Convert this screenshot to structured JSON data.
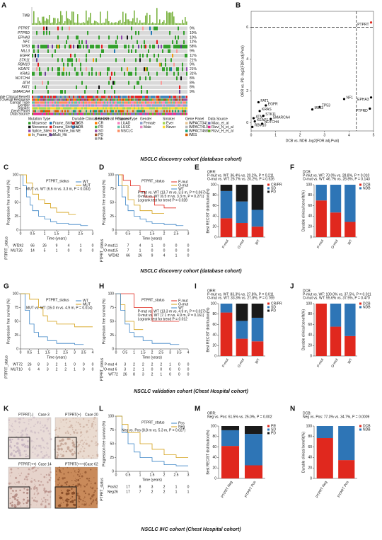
{
  "oncoprint": {
    "label": "A",
    "tmb_label": "TMB",
    "genes": [
      "PTPRT",
      "PTPRD",
      "EPHA3",
      "NF1",
      "TP53",
      "MLL3",
      "EGFR",
      "STK11",
      "RBM10",
      "KEAP1",
      "KRAS",
      "NOTCH4",
      "ATM",
      "FAT1",
      "SMARCA4"
    ],
    "percents": [
      "9%",
      "10%",
      "10%",
      "12%",
      "58%",
      "9%",
      "11%",
      "21%",
      "9%",
      "21%",
      "31%",
      "8%",
      "8%",
      "8%",
      "9%"
    ],
    "clinical_tracks": [
      "Durable Clinical Benefit",
      "Best Overall Response",
      "Cancer Type",
      "Gender",
      "Smoker",
      "Gene Panel",
      "Data Source"
    ],
    "legend": [
      {
        "title": "Mutation Type",
        "items": [
          "Missense",
          "Nonsense",
          "Splice_Site",
          "In_Frame_Del",
          "Frame_Shift_Del",
          "Frame_Shift_Ins",
          "In_Frame_Ins",
          "Multi_Hit"
        ]
      },
      {
        "title": "Durable Clinical Benefit",
        "items": [
          "DCB",
          "NDB",
          "NE"
        ]
      },
      {
        "title": "Best Overall Response",
        "items": [
          "CR",
          "PR",
          "SD",
          "PD",
          "NE"
        ]
      },
      {
        "title": "Cancer Type",
        "items": [
          "LUAD",
          "LUSC",
          "NSCLC"
        ]
      },
      {
        "title": "Gender",
        "items": [
          "Female",
          "Male"
        ]
      },
      {
        "title": "Smoker",
        "items": [
          "Ever",
          "Never"
        ]
      },
      {
        "title": "Gene Panel",
        "items": [
          "IMPACT341",
          "IMPACT410",
          "IMPACT468",
          "WES"
        ]
      },
      {
        "title": "Data Source",
        "items": [
          "Miao_et_al",
          "Rizvi_N_et_al",
          "Rizvi_H_et_al"
        ]
      }
    ]
  },
  "scatter": {
    "label": "B",
    "xlabel": "DCB vs. NDB -log2(FDR adj.Pval)",
    "ylabel": "ORR vs. PD -log2(FDR adj.Pval)",
    "xlim": [
      0,
      5
    ],
    "xticks": [
      0,
      1,
      2,
      3,
      4,
      5
    ],
    "ylim": [
      -0.5,
      7
    ],
    "yticks": [
      0,
      2,
      4,
      6
    ],
    "threshold_x": 4.3,
    "threshold_y": 6,
    "points": [
      {
        "name": "PTPRT",
        "x": 4.9,
        "y": 6.3,
        "color": "#e0281e"
      },
      {
        "name": "EPHA3",
        "x": 4.9,
        "y": 1.6,
        "color": "#000000"
      },
      {
        "name": "PTPRD",
        "x": 4.85,
        "y": 0.9,
        "color": "#000000"
      },
      {
        "name": "NF1",
        "x": 3.8,
        "y": 1.5,
        "color": "#000000"
      },
      {
        "name": "TP53",
        "x": 2.8,
        "y": 1.0,
        "color": "#000000"
      },
      {
        "name": "MLL3",
        "x": 2.5,
        "y": 0.85,
        "color": "#000000"
      },
      {
        "name": "FAT1",
        "x": 0.3,
        "y": 1.3,
        "color": "#000000"
      },
      {
        "name": "EGFR",
        "x": 0.6,
        "y": 1.1,
        "color": "#000000"
      },
      {
        "name": "KRAS",
        "x": 0.35,
        "y": 0.75,
        "color": "#000000"
      },
      {
        "name": "STK11",
        "x": 0.5,
        "y": 0.45,
        "color": "#000000"
      },
      {
        "name": "SMARCA4",
        "x": 0.8,
        "y": 0.25,
        "color": "#000000"
      },
      {
        "name": "ATM",
        "x": 0.1,
        "y": 0.3,
        "color": "#000000"
      },
      {
        "name": "KEAP1",
        "x": 0.15,
        "y": 0.1,
        "color": "#000000"
      },
      {
        "name": "NOTCH4",
        "x": 0.45,
        "y": -0.05,
        "color": "#000000"
      },
      {
        "name": "RBM10",
        "x": 0.05,
        "y": -0.25,
        "color": "#000000"
      }
    ]
  },
  "captions": [
    "NSCLC discovery cohort (database cohort)",
    "NSCLC discovery cohort (database cohort)",
    "NSCLC validation cohort (Chest Hospital cohort)",
    "NSCLC IHC cohort (Chest Hospital cohort)"
  ],
  "km_panels": [
    {
      "label": "C",
      "legend_title": "PTPRT_status",
      "annotations": [
        "MUT vs. WT (6.6 m vs. 3.3 m, P = 0.033)"
      ],
      "xlabel": "Time (years)",
      "ylabel": "Progression free survival (%)",
      "risk_title": "PTPRT_status",
      "xlim": [
        0,
        3
      ],
      "xticks": [
        0,
        0.5,
        1,
        1.5,
        2,
        2.5,
        3
      ],
      "ylim": [
        0,
        100
      ],
      "yticks": [
        0,
        25,
        50,
        75,
        100
      ],
      "series": [
        {
          "name": "WT",
          "color": "#3d85c6",
          "x": [
            0,
            0.1,
            0.25,
            0.4,
            0.5,
            0.75,
            1,
            1.25,
            1.5,
            2,
            2.5,
            2.8
          ],
          "y": [
            100,
            80,
            60,
            45,
            35,
            25,
            20,
            15,
            12,
            10,
            8,
            8
          ],
          "risk": [
            242,
            66,
            26,
            9,
            4,
            1,
            0
          ]
        },
        {
          "name": "MUT",
          "color": "#d4a017",
          "x": [
            0,
            0.25,
            0.5,
            0.75,
            1,
            1.25,
            1.5,
            2,
            2.3
          ],
          "y": [
            100,
            85,
            65,
            55,
            48,
            40,
            32,
            28,
            28
          ],
          "risk": [
            26,
            14,
            5,
            1,
            0,
            0,
            0
          ]
        }
      ]
    },
    {
      "label": "D",
      "legend_title": "PTPRT_status",
      "annotations": [
        "P-mut vs. WT (13.7 m vs. 3.3 m, P = 0.067)",
        "O-mut vs. WT (6.5 m vs. 3.3 m, P = 0.271)",
        "Logrank test for trend P = 0.028"
      ],
      "xlabel": "Time (years)",
      "ylabel": "Progression free survival (%)",
      "risk_title": "PTPRT_status",
      "xlim": [
        0,
        3
      ],
      "xticks": [
        0,
        0.5,
        1,
        1.5,
        2,
        2.5,
        3
      ],
      "ylim": [
        0,
        100
      ],
      "yticks": [
        0,
        25,
        50,
        75,
        100
      ],
      "series": [
        {
          "name": "P-mut",
          "color": "#e0281e",
          "x": [
            0,
            0.3,
            0.6,
            1,
            1.2,
            1.6,
            2,
            2.5
          ],
          "y": [
            100,
            90,
            80,
            70,
            60,
            45,
            40,
            40
          ],
          "risk": [
            11,
            7,
            4,
            1,
            0,
            0,
            0
          ]
        },
        {
          "name": "O-mut",
          "color": "#d4a017",
          "x": [
            0,
            0.25,
            0.5,
            0.75,
            1,
            1.5,
            2
          ],
          "y": [
            100,
            80,
            55,
            45,
            35,
            30,
            30
          ],
          "risk": [
            15,
            7,
            1,
            0,
            0,
            0,
            0
          ]
        },
        {
          "name": "WT",
          "color": "#3d85c6",
          "x": [
            0,
            0.1,
            0.25,
            0.4,
            0.5,
            0.75,
            1,
            1.25,
            1.5,
            2,
            2.5,
            2.8
          ],
          "y": [
            100,
            80,
            60,
            45,
            35,
            25,
            20,
            15,
            12,
            10,
            8,
            8
          ],
          "risk": [
            242,
            66,
            26,
            9,
            4,
            1,
            0
          ]
        }
      ]
    },
    {
      "label": "G",
      "legend_title": "PTPRT_status",
      "annotations": [
        "MUT vs. WT (15.0 m vs. 4.9 m, P = 0.014)"
      ],
      "xlabel": "Time (years)",
      "ylabel": "Progression free survival (%)",
      "risk_title": "PTPRT_status",
      "xlim": [
        0,
        4
      ],
      "xticks": [
        0,
        0.5,
        1,
        1.5,
        2,
        2.5,
        3,
        3.5,
        4
      ],
      "ylim": [
        0,
        100
      ],
      "yticks": [
        0,
        25,
        50,
        75,
        100
      ],
      "series": [
        {
          "name": "WT",
          "color": "#3d85c6",
          "x": [
            0,
            0.25,
            0.5,
            0.75,
            1,
            1.5,
            2,
            3,
            3.5
          ],
          "y": [
            100,
            70,
            45,
            30,
            22,
            15,
            10,
            8,
            8
          ],
          "risk": [
            72,
            26,
            8,
            3,
            2,
            1,
            0,
            0,
            0
          ]
        },
        {
          "name": "MUT",
          "color": "#d4a017",
          "x": [
            0,
            0.5,
            1,
            1.25,
            1.5,
            2,
            3,
            4
          ],
          "y": [
            100,
            90,
            75,
            60,
            50,
            45,
            40,
            40
          ],
          "risk": [
            10,
            6,
            4,
            3,
            2,
            2,
            1,
            0,
            0
          ]
        }
      ]
    },
    {
      "label": "H",
      "legend_title": "PTPRT_status",
      "annotations": [
        "P-mut vs. WT (13.3 m vs. 4.9 m, P = 0.027)",
        "O-mut vs. WT (7.1 m vs. 4.9 m, P = 0.161)",
        "Logrank test for trend P = 0.012"
      ],
      "xlabel": "Time (years)",
      "ylabel": "Progression free survival (%)",
      "risk_title": "PTPRT_status",
      "xlim": [
        0,
        4
      ],
      "xticks": [
        0,
        0.5,
        1,
        1.5,
        2,
        2.5,
        3,
        3.5,
        4
      ],
      "ylim": [
        0,
        100
      ],
      "yticks": [
        0,
        25,
        50,
        75,
        100
      ],
      "series": [
        {
          "name": "P-mut",
          "color": "#e0281e",
          "x": [
            0,
            0.5,
            1,
            1.5,
            2,
            2.5,
            3.5
          ],
          "y": [
            100,
            100,
            75,
            75,
            50,
            50,
            50
          ],
          "risk": [
            4,
            3,
            2,
            2,
            2,
            2,
            1,
            0,
            0
          ]
        },
        {
          "name": "O-mut",
          "color": "#d4a017",
          "x": [
            0,
            0.25,
            0.5,
            1,
            1.5
          ],
          "y": [
            100,
            80,
            50,
            35,
            35
          ],
          "risk": [
            6,
            3,
            2,
            1,
            0,
            0,
            0,
            0,
            0
          ]
        },
        {
          "name": "WT",
          "color": "#3d85c6",
          "x": [
            0,
            0.25,
            0.5,
            0.75,
            1,
            1.5,
            2,
            3,
            3.5
          ],
          "y": [
            100,
            70,
            45,
            30,
            22,
            15,
            10,
            8,
            8
          ],
          "risk": [
            72,
            26,
            8,
            3,
            2,
            1,
            0,
            0,
            0
          ]
        }
      ]
    },
    {
      "label": "L",
      "legend_title": "PTPRT_status",
      "annotations": [
        "Neg vs. Pos (8.8 m vs. 5.3 m, P = 0.027)"
      ],
      "xlabel": "Time (years)",
      "ylabel": "Progression free survival (%)",
      "risk_title": "PTPRT_status",
      "xlim": [
        0,
        3
      ],
      "xticks": [
        0,
        0.5,
        1,
        1.5,
        2,
        2.5,
        3
      ],
      "ylim": [
        0,
        100
      ],
      "yticks": [
        0,
        25,
        50,
        75,
        100
      ],
      "series": [
        {
          "name": "Pos",
          "color": "#3d85c6",
          "x": [
            0,
            0.25,
            0.5,
            0.75,
            1,
            1.5,
            2,
            2.5,
            3
          ],
          "y": [
            100,
            70,
            50,
            35,
            25,
            18,
            12,
            10,
            10
          ],
          "risk": [
            52,
            17,
            8,
            3,
            2,
            1,
            0
          ]
        },
        {
          "name": "Neg",
          "color": "#d4a017",
          "x": [
            0,
            0.25,
            0.5,
            1,
            1.5,
            2,
            2.5,
            3
          ],
          "y": [
            100,
            85,
            70,
            50,
            40,
            30,
            25,
            25
          ],
          "risk": [
            26,
            17,
            7,
            2,
            2,
            1,
            1
          ]
        }
      ]
    }
  ],
  "bar_panels": [
    {
      "label": "E",
      "title": "ORR:",
      "stats": [
        "P-mut vs. WT: 36.4% vs. 20.2%, P = 0.211",
        "O-mut vs. WT: 26.7% vs. 20.2%, P = 0.526"
      ],
      "ylabel": "Best RECIST distribution(%)",
      "ylim": [
        0,
        100
      ],
      "yticks": [
        0,
        20,
        40,
        60,
        80,
        100
      ],
      "categories": [
        "P-mut",
        "O-mut",
        "WT"
      ],
      "series": [
        {
          "name": "CR/PR",
          "color": "#e0281e",
          "values": [
            36,
            27,
            20
          ]
        },
        {
          "name": "SD",
          "color": "#2e75b6",
          "values": [
            52,
            41,
            32
          ]
        },
        {
          "name": "PD",
          "color": "#1a1a1a",
          "values": [
            12,
            32,
            48
          ]
        }
      ]
    },
    {
      "label": "F",
      "title": "DCB:",
      "stats": [
        "P-mut vs. WT: 70.0% vs. 28.8%, P = 0.010",
        "O-mut vs. WT: 46.7% vs. 28.8%, P = 0.143"
      ],
      "ylabel": "Durable clinical benefit(%)",
      "ylim": [
        0,
        100
      ],
      "yticks": [
        0,
        20,
        40,
        60,
        80,
        100
      ],
      "categories": [
        "P-mut",
        "O-mut",
        "WT"
      ],
      "series": [
        {
          "name": "DCB",
          "color": "#e0281e",
          "values": [
            70,
            47,
            29
          ]
        },
        {
          "name": "NDB",
          "color": "#2e75b6",
          "values": [
            30,
            53,
            71
          ]
        }
      ]
    },
    {
      "label": "I",
      "title": "ORR:",
      "stats": [
        "P-mut vs. WT: 83.3% vs. 27.8%, P = 0.011",
        "O-mut vs. WT: 33.3% vs. 27.8%, P = 0.769"
      ],
      "ylabel": "Best RECIST distribution(%)",
      "ylim": [
        0,
        100
      ],
      "yticks": [
        0,
        20,
        40,
        60,
        80,
        100
      ],
      "categories": [
        "P-mut",
        "O-mut",
        "WT"
      ],
      "series": [
        {
          "name": "CR/PR",
          "color": "#e0281e",
          "values": [
            83,
            33,
            28
          ]
        },
        {
          "name": "SD",
          "color": "#2e75b6",
          "values": [
            17,
            34,
            45
          ]
        },
        {
          "name": "PD",
          "color": "#1a1a1a",
          "values": [
            0,
            33,
            27
          ]
        }
      ]
    },
    {
      "label": "J",
      "title": "DCB:",
      "stats": [
        "P-mut vs. WT: 100.0% vs. 37.5%, P = 0.011",
        "O-mut vs. WT: 55.6% vs. 37.5%, P = 0.470"
      ],
      "ylabel": "Durable clinical benefit(%)",
      "ylim": [
        0,
        100
      ],
      "yticks": [
        0,
        20,
        40,
        60,
        80,
        100
      ],
      "categories": [
        "P-mut",
        "O-mut",
        "WT"
      ],
      "series": [
        {
          "name": "DCB",
          "color": "#e0281e",
          "values": [
            100,
            56,
            38
          ]
        },
        {
          "name": "NDB",
          "color": "#2e75b6",
          "values": [
            0,
            44,
            62
          ]
        }
      ]
    },
    {
      "label": "M",
      "title": "ORR:",
      "stats": [
        "Neg vs. Pos: 61.5% vs. 25.0%, P = 0.002"
      ],
      "ylabel": "Best RECIST distribution(%)",
      "ylim": [
        0,
        100
      ],
      "yticks": [
        0,
        20,
        40,
        60,
        80,
        100
      ],
      "categories": [
        "PTPRT Neg",
        "PTPRT Pos"
      ],
      "series": [
        {
          "name": "PR",
          "color": "#e0281e",
          "values": [
            62,
            25
          ]
        },
        {
          "name": "SD",
          "color": "#2e75b6",
          "values": [
            30,
            60
          ]
        },
        {
          "name": "PD",
          "color": "#1a1a1a",
          "values": [
            8,
            15
          ]
        }
      ]
    },
    {
      "label": "N",
      "title": "DCB:",
      "stats": [
        "Neg vs. Pos: 77.3% vs. 34.7%, P = 0.0009"
      ],
      "ylabel": "Durable clinical benefit(%)",
      "ylim": [
        0,
        100
      ],
      "yticks": [
        0,
        20,
        40,
        60,
        80,
        100
      ],
      "categories": [
        "PTPRT Neg",
        "PTPRT Pos"
      ],
      "series": [
        {
          "name": "DCB",
          "color": "#e0281e",
          "values": [
            77,
            35
          ]
        },
        {
          "name": "NDB",
          "color": "#2e75b6",
          "values": [
            23,
            65
          ]
        }
      ]
    }
  ],
  "ihc": {
    "label": "K",
    "images": [
      {
        "grade": "PTPRT(-)",
        "case": "Case 3"
      },
      {
        "grade": "PTPRT(+)",
        "case": "Case 20"
      },
      {
        "grade": "PTPRT(++)",
        "case": "Case 14"
      },
      {
        "grade": "PTPRT(+++)",
        "case": "Case 62"
      }
    ]
  }
}
